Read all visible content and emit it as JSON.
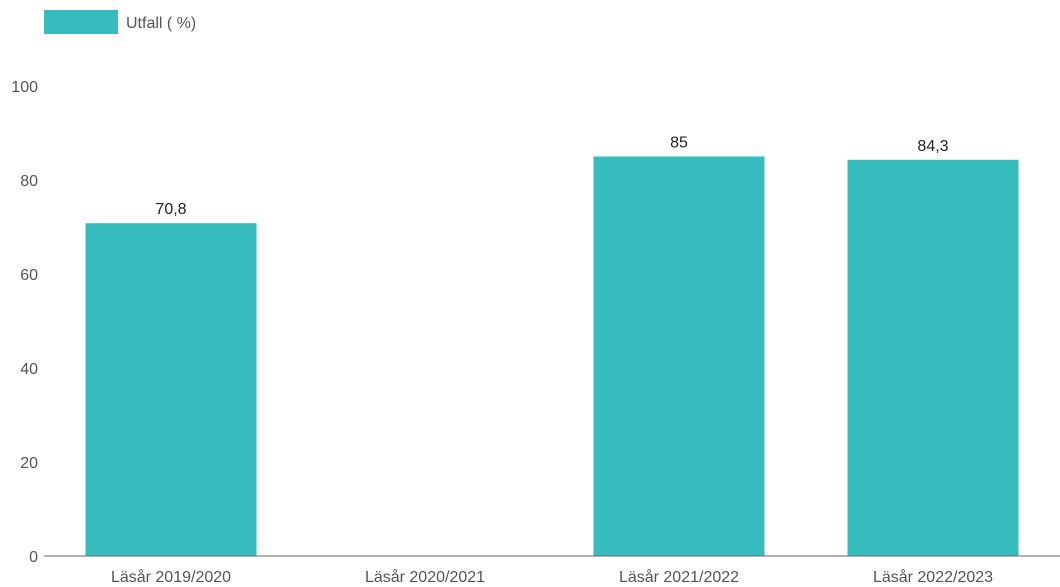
{
  "chart_data": {
    "type": "bar",
    "categories": [
      "Läsår 2019/2020",
      "Läsår 2020/2021",
      "Läsår 2021/2022",
      "Läsår 2022/2023"
    ],
    "series": [
      {
        "name": "Utfall ( %)",
        "values": [
          70.8,
          null,
          85,
          84.3
        ],
        "value_labels": [
          "70,8",
          "",
          "85",
          "84,3"
        ],
        "color": "#37bcbd"
      }
    ],
    "yticks": [
      "0",
      "20",
      "40",
      "60",
      "80",
      "100"
    ],
    "ylim": [
      0,
      100
    ],
    "grid": false,
    "legend_position": "top-left"
  }
}
